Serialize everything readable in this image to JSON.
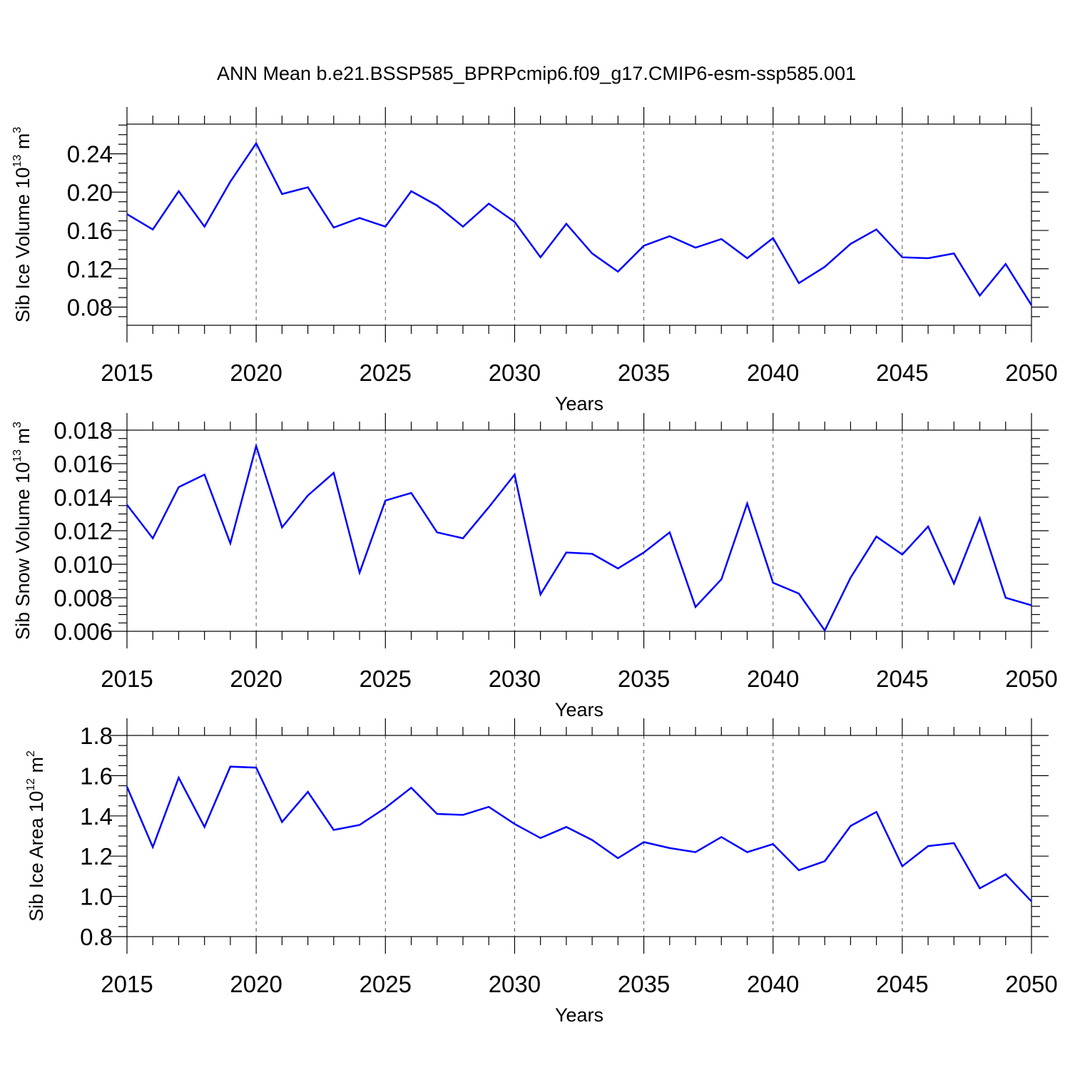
{
  "title": "ANN Mean b.e21.BSSP585_BPRPcmip6.f09_g17.CMIP6-esm-ssp585.001",
  "chart_data": [
    {
      "type": "line",
      "ylabel": "Sib Ice Volume 10",
      "ylabel_exp": "13",
      "ylabel_unit": " m",
      "ylabel_unit_exp": "3",
      "xlabel": "Years",
      "xlim": [
        2015,
        2050
      ],
      "ylim": [
        0.061,
        0.271
      ],
      "yticks": [
        "0.08",
        "0.12",
        "0.16",
        "0.20",
        "0.24"
      ],
      "yticks_values": [
        0.08,
        0.12,
        0.16,
        0.2,
        0.24
      ],
      "xticks": [
        "2015",
        "2020",
        "2025",
        "2030",
        "2035",
        "2040",
        "2045",
        "2050"
      ],
      "x": [
        2015,
        2016,
        2017,
        2018,
        2019,
        2020,
        2021,
        2022,
        2023,
        2024,
        2025,
        2026,
        2027,
        2028,
        2029,
        2030,
        2031,
        2032,
        2033,
        2034,
        2035,
        2036,
        2037,
        2038,
        2039,
        2040,
        2041,
        2042,
        2043,
        2044,
        2045,
        2046,
        2047,
        2048,
        2049,
        2050
      ],
      "series": [
        {
          "color": "#0000ff",
          "values": [
            0.177,
            0.161,
            0.201,
            0.164,
            0.211,
            0.251,
            0.198,
            0.205,
            0.163,
            0.173,
            0.164,
            0.201,
            0.186,
            0.164,
            0.188,
            0.169,
            0.132,
            0.167,
            0.136,
            0.117,
            0.144,
            0.154,
            0.142,
            0.151,
            0.131,
            0.152,
            0.105,
            0.122,
            0.146,
            0.161,
            0.132,
            0.131,
            0.136,
            0.092,
            0.125,
            0.082
          ]
        }
      ],
      "grid": "vertical dashed at major x ticks"
    },
    {
      "type": "line",
      "ylabel": "Sib Snow Volume 10",
      "ylabel_exp": "13",
      "ylabel_unit": " m",
      "ylabel_unit_exp": "3",
      "xlabel": "Years",
      "xlim": [
        2015,
        2050
      ],
      "ylim": [
        0.006,
        0.018
      ],
      "yticks": [
        "0.006",
        "0.008",
        "0.010",
        "0.012",
        "0.014",
        "0.016",
        "0.018"
      ],
      "yticks_values": [
        0.006,
        0.008,
        0.01,
        0.012,
        0.014,
        0.016,
        0.018
      ],
      "xticks": [
        "2015",
        "2020",
        "2025",
        "2030",
        "2035",
        "2040",
        "2045",
        "2050"
      ],
      "x": [
        2015,
        2016,
        2017,
        2018,
        2019,
        2020,
        2021,
        2022,
        2023,
        2024,
        2025,
        2026,
        2027,
        2028,
        2029,
        2030,
        2031,
        2032,
        2033,
        2034,
        2035,
        2036,
        2037,
        2038,
        2039,
        2040,
        2041,
        2042,
        2043,
        2044,
        2045,
        2046,
        2047,
        2048,
        2049,
        2050
      ],
      "series": [
        {
          "color": "#0000ff",
          "values": [
            0.01355,
            0.01155,
            0.0146,
            0.01535,
            0.01125,
            0.01705,
            0.0122,
            0.0141,
            0.01545,
            0.0095,
            0.0138,
            0.01425,
            0.0119,
            0.01155,
            0.0134,
            0.01535,
            0.0082,
            0.0107,
            0.01062,
            0.00975,
            0.0107,
            0.0119,
            0.00745,
            0.0091,
            0.01362,
            0.0089,
            0.00825,
            0.00605,
            0.0092,
            0.01165,
            0.01058,
            0.01225,
            0.00885,
            0.01275,
            0.008,
            0.00755
          ]
        }
      ],
      "grid": "vertical dashed at major x ticks"
    },
    {
      "type": "line",
      "ylabel": "Sib Ice Area 10",
      "ylabel_exp": "12",
      "ylabel_unit": " m",
      "ylabel_unit_exp": "2",
      "xlabel": "Years",
      "xlim": [
        2015,
        2050
      ],
      "ylim": [
        0.8,
        1.8
      ],
      "yticks": [
        "0.8",
        "1.0",
        "1.2",
        "1.4",
        "1.6",
        "1.8"
      ],
      "yticks_values": [
        0.8,
        1.0,
        1.2,
        1.4,
        1.6,
        1.8
      ],
      "xticks": [
        "2015",
        "2020",
        "2025",
        "2030",
        "2035",
        "2040",
        "2045",
        "2050"
      ],
      "x": [
        2015,
        2016,
        2017,
        2018,
        2019,
        2020,
        2021,
        2022,
        2023,
        2024,
        2025,
        2026,
        2027,
        2028,
        2029,
        2030,
        2031,
        2032,
        2033,
        2034,
        2035,
        2036,
        2037,
        2038,
        2039,
        2040,
        2041,
        2042,
        2043,
        2044,
        2045,
        2046,
        2047,
        2048,
        2049,
        2050
      ],
      "series": [
        {
          "color": "#0000ff",
          "values": [
            1.545,
            1.245,
            1.59,
            1.345,
            1.645,
            1.64,
            1.37,
            1.52,
            1.33,
            1.355,
            1.44,
            1.54,
            1.41,
            1.405,
            1.445,
            1.36,
            1.29,
            1.345,
            1.28,
            1.19,
            1.27,
            1.24,
            1.22,
            1.295,
            1.22,
            1.26,
            1.13,
            1.175,
            1.35,
            1.42,
            1.15,
            1.25,
            1.265,
            1.04,
            1.11,
            0.975
          ]
        }
      ],
      "grid": "vertical dashed at major x ticks"
    }
  ]
}
